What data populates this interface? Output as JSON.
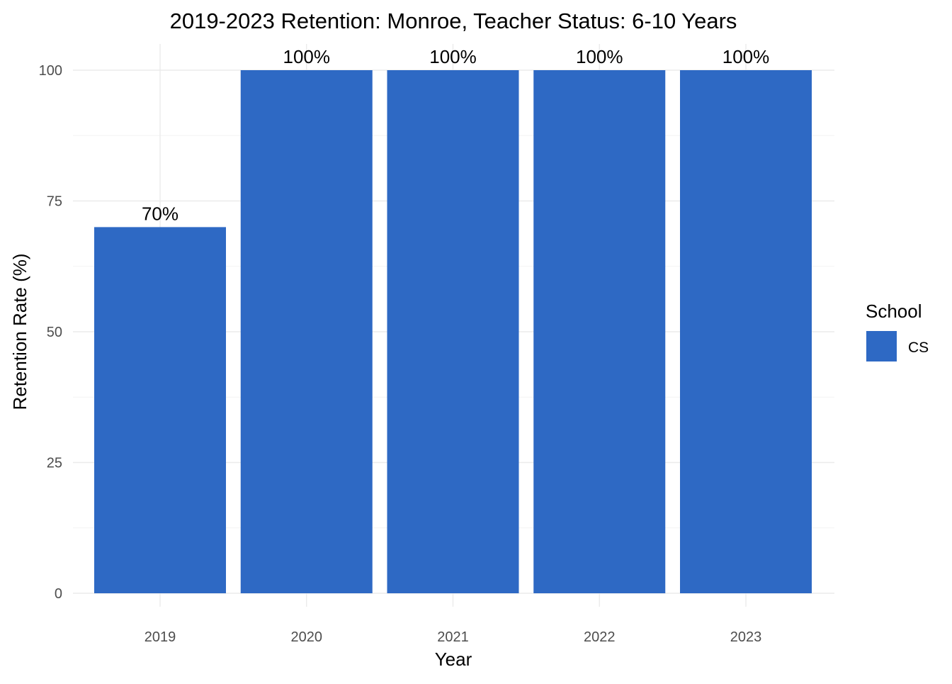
{
  "chart_data": {
    "type": "bar",
    "title": "2019-2023 Retention: Monroe, Teacher Status: 6-10 Years",
    "xlabel": "Year",
    "ylabel": "Retention Rate (%)",
    "categories": [
      "2019",
      "2020",
      "2021",
      "2022",
      "2023"
    ],
    "series": [
      {
        "name": "CS",
        "values": [
          70,
          100,
          100,
          100,
          100
        ],
        "labels": [
          "70%",
          "100%",
          "100%",
          "100%",
          "100%"
        ],
        "color": "#2e69c4"
      }
    ],
    "ylim": [
      0,
      100
    ],
    "yticks": [
      0,
      25,
      50,
      75,
      100
    ],
    "ytick_labels": [
      "0",
      "25",
      "50",
      "75",
      "100"
    ],
    "grid": true,
    "legend": {
      "title": "School",
      "position": "right",
      "items": [
        {
          "label": "CS",
          "color": "#2e69c4"
        }
      ]
    }
  }
}
